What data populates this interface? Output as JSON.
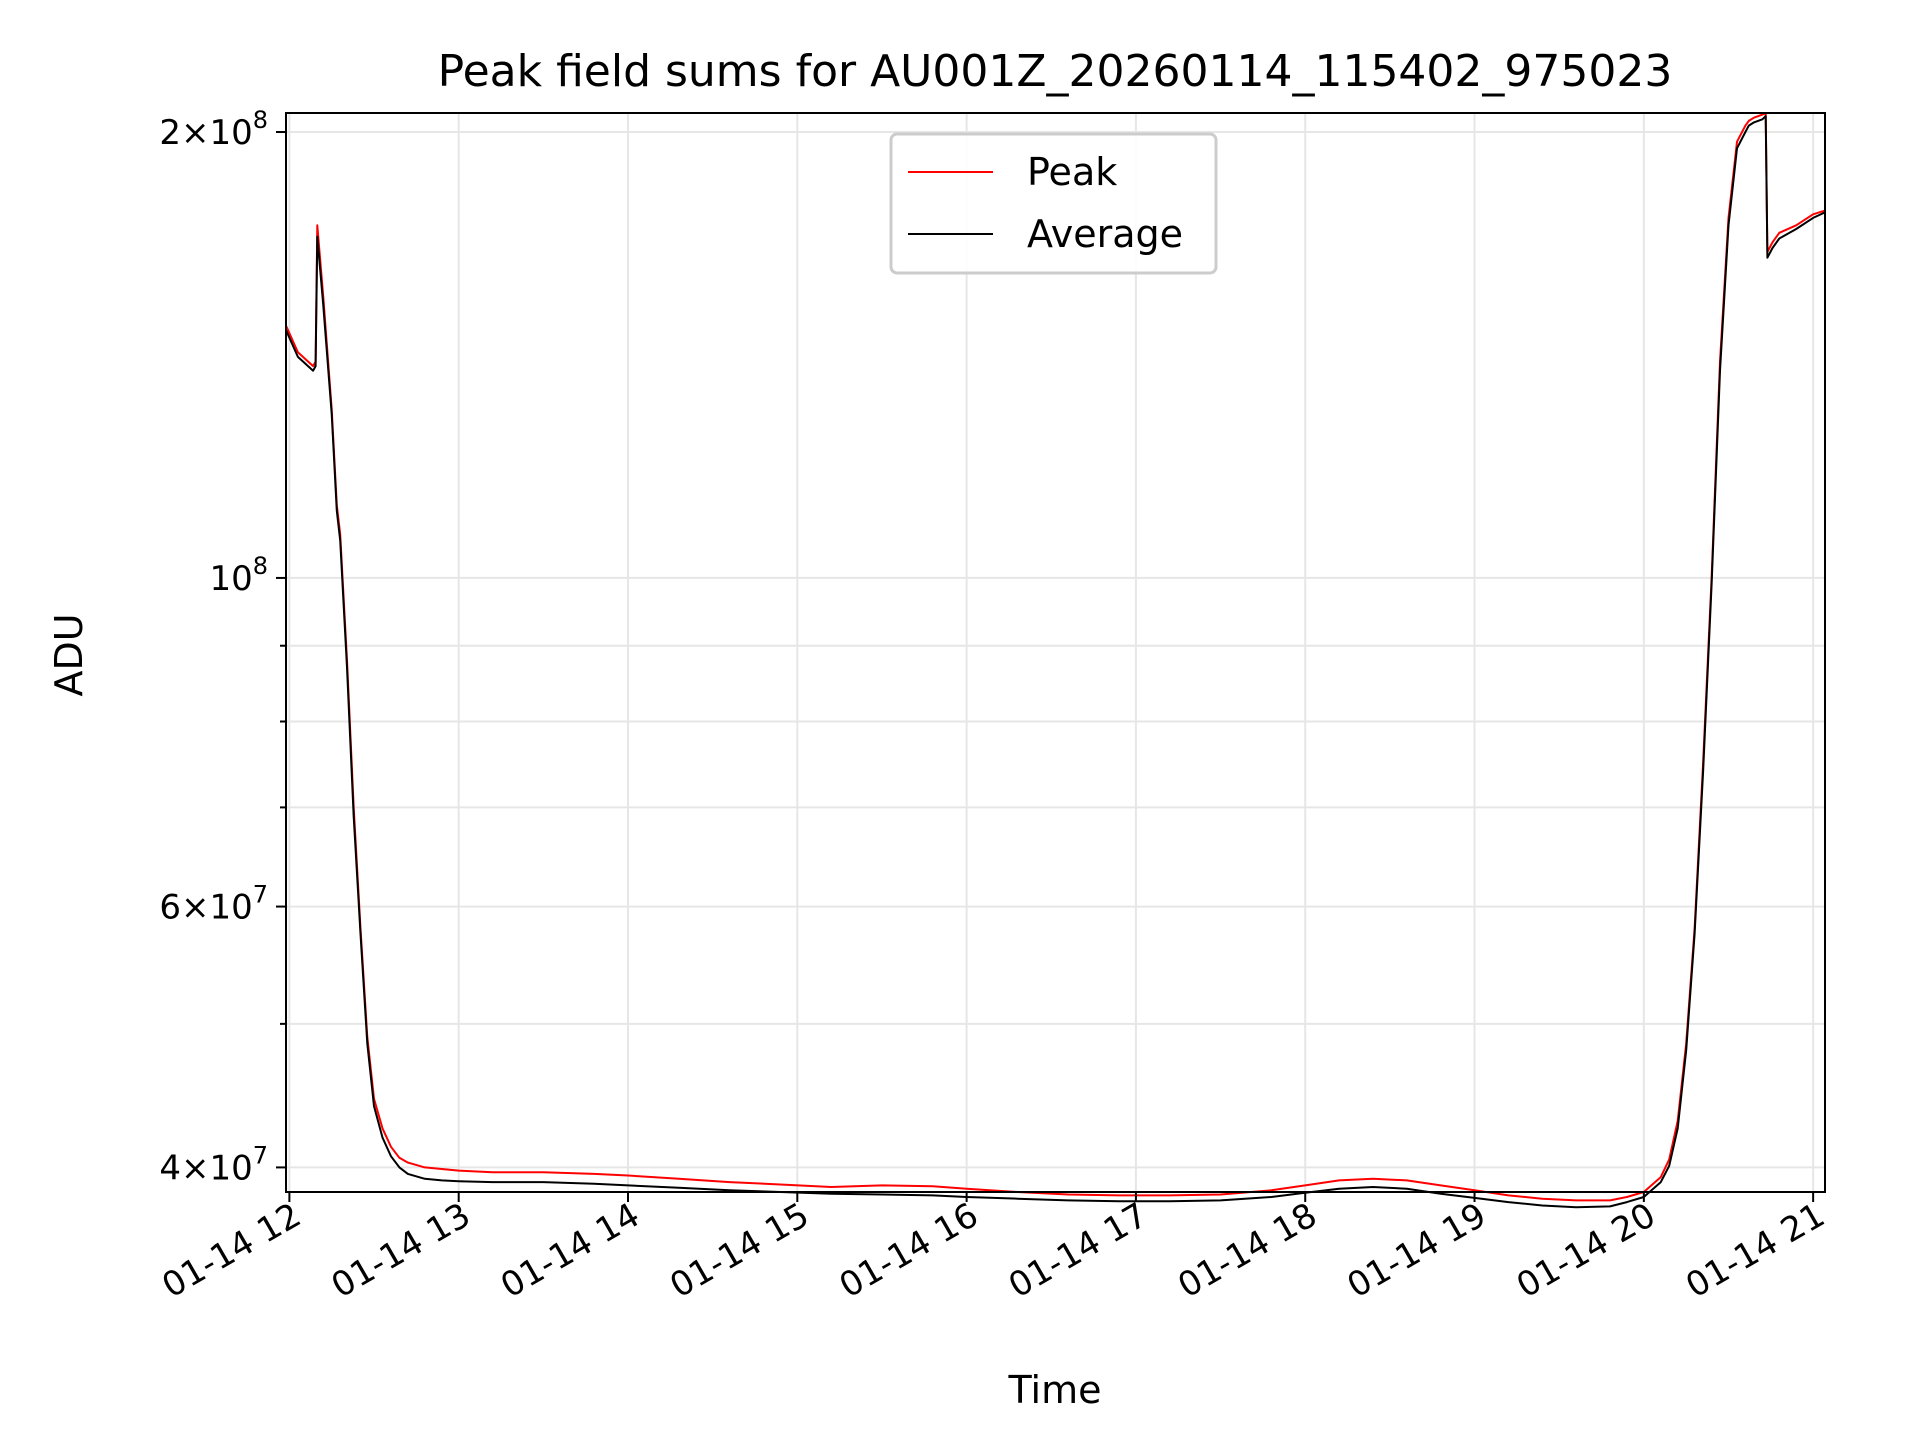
{
  "chart_data": {
    "type": "line",
    "title": "Peak field sums for AU001Z_20260114_115402_975023",
    "xlabel": "Time",
    "ylabel": "ADU",
    "yscale": "log",
    "grid": true,
    "legend_position": "upper center",
    "xlim": [
      11.98,
      21.07
    ],
    "ylim": [
      38500000,
      206000000
    ],
    "x_ticks": [
      {
        "value": 12,
        "label": "01-14 12"
      },
      {
        "value": 13,
        "label": "01-14 13"
      },
      {
        "value": 14,
        "label": "01-14 14"
      },
      {
        "value": 15,
        "label": "01-14 15"
      },
      {
        "value": 16,
        "label": "01-14 16"
      },
      {
        "value": 17,
        "label": "01-14 17"
      },
      {
        "value": 18,
        "label": "01-14 18"
      },
      {
        "value": 19,
        "label": "01-14 19"
      },
      {
        "value": 20,
        "label": "01-14 20"
      },
      {
        "value": 21,
        "label": "01-14 21"
      }
    ],
    "y_ticks": [
      {
        "value": 40000000,
        "mantissa": "4",
        "exponent": "7"
      },
      {
        "value": 60000000,
        "mantissa": "6",
        "exponent": "7"
      },
      {
        "value": 100000000,
        "mantissa": "",
        "exponent": "8"
      },
      {
        "value": 200000000,
        "mantissa": "2",
        "exponent": "8"
      }
    ],
    "y_minor_grid": [
      50000000,
      70000000,
      80000000,
      90000000
    ],
    "series": [
      {
        "name": "Peak",
        "color": "#ff0000",
        "x": [
          11.98,
          12.05,
          12.14,
          12.155,
          12.165,
          12.2,
          12.25,
          12.28,
          12.3,
          12.34,
          12.38,
          12.42,
          12.46,
          12.5,
          12.55,
          12.6,
          12.65,
          12.7,
          12.8,
          12.9,
          13.0,
          13.2,
          13.5,
          13.8,
          14.0,
          14.3,
          14.6,
          14.9,
          15.2,
          15.5,
          15.8,
          16.0,
          16.3,
          16.6,
          16.9,
          17.2,
          17.5,
          17.8,
          18.0,
          18.2,
          18.4,
          18.6,
          18.8,
          19.0,
          19.2,
          19.4,
          19.6,
          19.8,
          19.9,
          20.0,
          20.1,
          20.15,
          20.2,
          20.25,
          20.3,
          20.35,
          20.4,
          20.45,
          20.5,
          20.55,
          20.6,
          20.62,
          20.65,
          20.7,
          20.72,
          20.73,
          20.76,
          20.8,
          20.9,
          21.0,
          21.07
        ],
        "y": [
          148000000,
          142000000,
          139000000,
          140000000,
          173000000,
          155000000,
          130000000,
          112000000,
          107000000,
          88000000,
          70000000,
          58000000,
          49000000,
          44500000,
          42500000,
          41300000,
          40600000,
          40300000,
          40000000,
          39900000,
          39800000,
          39700000,
          39700000,
          39600000,
          39500000,
          39300000,
          39100000,
          38950000,
          38800000,
          38900000,
          38850000,
          38700000,
          38500000,
          38350000,
          38300000,
          38300000,
          38350000,
          38600000,
          38900000,
          39200000,
          39300000,
          39200000,
          38900000,
          38600000,
          38300000,
          38100000,
          38000000,
          38000000,
          38200000,
          38500000,
          39400000,
          40500000,
          43000000,
          48500000,
          58000000,
          75000000,
          100000000,
          140000000,
          175000000,
          197000000,
          202000000,
          203500000,
          204500000,
          205500000,
          206000000,
          166000000,
          168500000,
          171000000,
          173000000,
          176000000,
          177000000
        ]
      },
      {
        "name": "Average",
        "color": "#000000",
        "x": [
          11.98,
          12.05,
          12.14,
          12.155,
          12.165,
          12.2,
          12.25,
          12.28,
          12.3,
          12.34,
          12.38,
          12.42,
          12.46,
          12.5,
          12.55,
          12.6,
          12.65,
          12.7,
          12.8,
          12.9,
          13.0,
          13.2,
          13.5,
          13.8,
          14.0,
          14.3,
          14.6,
          14.9,
          15.2,
          15.5,
          15.8,
          16.0,
          16.3,
          16.6,
          16.9,
          17.2,
          17.5,
          17.8,
          18.0,
          18.2,
          18.4,
          18.6,
          18.8,
          19.0,
          19.2,
          19.4,
          19.6,
          19.8,
          19.9,
          20.0,
          20.1,
          20.15,
          20.2,
          20.25,
          20.3,
          20.35,
          20.4,
          20.45,
          20.5,
          20.55,
          20.6,
          20.62,
          20.65,
          20.7,
          20.72,
          20.73,
          20.76,
          20.8,
          20.9,
          21.0,
          21.07
        ],
        "y": [
          147000000,
          141000000,
          138000000,
          139000000,
          170000000,
          153000000,
          129000000,
          111000000,
          106000000,
          87000000,
          69000000,
          57500000,
          48500000,
          44000000,
          41900000,
          40700000,
          40000000,
          39600000,
          39300000,
          39200000,
          39150000,
          39100000,
          39100000,
          39000000,
          38900000,
          38750000,
          38600000,
          38500000,
          38400000,
          38350000,
          38300000,
          38200000,
          38100000,
          38000000,
          37950000,
          37950000,
          38000000,
          38200000,
          38450000,
          38700000,
          38800000,
          38700000,
          38400000,
          38150000,
          37900000,
          37700000,
          37600000,
          37650000,
          37900000,
          38200000,
          39100000,
          40100000,
          42500000,
          48000000,
          57500000,
          74000000,
          99000000,
          138000000,
          173000000,
          195000000,
          200000000,
          202000000,
          203000000,
          204000000,
          205000000,
          164500000,
          167000000,
          169500000,
          172000000,
          175000000,
          176500000
        ]
      }
    ]
  }
}
